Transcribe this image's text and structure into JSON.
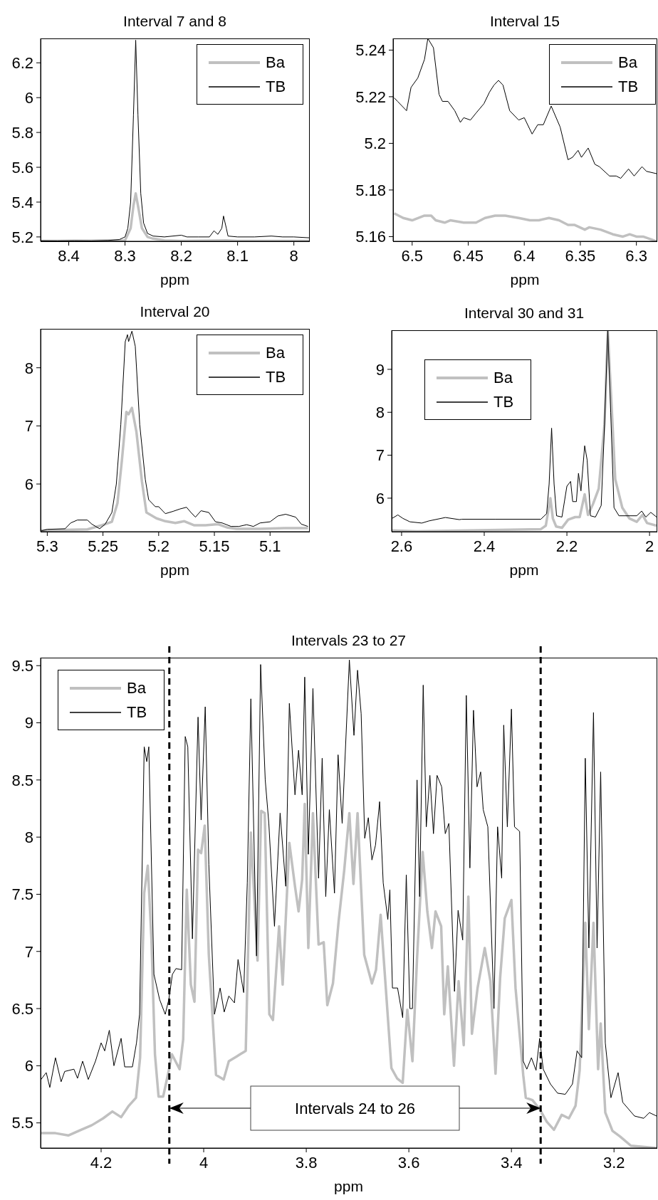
{
  "chart_data": [
    {
      "type": "line",
      "title": "Interval 7 and 8",
      "xlabel": "ppm",
      "xlim": [
        8.45,
        7.973
      ],
      "xticks": [
        8.4,
        8.3,
        8.2,
        8.1,
        8
      ],
      "ylim": [
        5.175,
        6.34
      ],
      "yticks": [
        5.2,
        5.4,
        5.6,
        5.8,
        6,
        6.2
      ],
      "legend": "top right",
      "series": [
        {
          "name": "Ba",
          "color": "#c0c0c0",
          "x": [
            8.45,
            8.3,
            8.29,
            8.285,
            8.281,
            8.277,
            8.27,
            8.26,
            8.25,
            8.23,
            8.2,
            8.12,
            8.1,
            7.973
          ],
          "values": [
            5.177,
            5.18,
            5.25,
            5.38,
            5.45,
            5.38,
            5.25,
            5.2,
            5.19,
            5.18,
            5.177,
            5.18,
            5.177,
            5.177
          ]
        },
        {
          "name": "TB",
          "color": "#000000",
          "x": [
            8.45,
            8.42,
            8.39,
            8.36,
            8.33,
            8.31,
            8.3,
            8.295,
            8.29,
            8.285,
            8.281,
            8.277,
            8.272,
            8.267,
            8.26,
            8.25,
            8.23,
            8.2,
            8.19,
            8.17,
            8.15,
            8.142,
            8.135,
            8.128,
            8.125,
            8.12,
            8.117,
            8.1,
            8.07,
            8.04,
            8.02,
            8.0,
            7.973
          ],
          "values": [
            5.178,
            5.177,
            5.178,
            5.177,
            5.18,
            5.185,
            5.2,
            5.25,
            5.4,
            5.9,
            6.33,
            5.9,
            5.45,
            5.28,
            5.22,
            5.205,
            5.2,
            5.21,
            5.2,
            5.2,
            5.2,
            5.235,
            5.215,
            5.25,
            5.32,
            5.25,
            5.205,
            5.2,
            5.2,
            5.205,
            5.2,
            5.2,
            5.195
          ]
        }
      ]
    },
    {
      "type": "line",
      "title": "Interval 15",
      "xlabel": "ppm",
      "xlim": [
        6.517,
        6.282
      ],
      "xticks": [
        6.5,
        6.45,
        6.4,
        6.35,
        6.3
      ],
      "ylim": [
        5.158,
        5.245
      ],
      "yticks": [
        5.16,
        5.18,
        5.2,
        5.22,
        5.24
      ],
      "legend": "top right",
      "series": [
        {
          "name": "Ba",
          "color": "#c0c0c0",
          "x": [
            6.516,
            6.508,
            6.5,
            6.489,
            6.483,
            6.479,
            6.471,
            6.466,
            6.454,
            6.443,
            6.435,
            6.426,
            6.417,
            6.405,
            6.395,
            6.387,
            6.378,
            6.369,
            6.361,
            6.355,
            6.346,
            6.342,
            6.332,
            6.321,
            6.312,
            6.306,
            6.3,
            6.294,
            6.282
          ],
          "values": [
            5.17,
            5.168,
            5.167,
            5.169,
            5.169,
            5.167,
            5.166,
            5.167,
            5.166,
            5.166,
            5.168,
            5.169,
            5.169,
            5.168,
            5.167,
            5.167,
            5.168,
            5.167,
            5.165,
            5.165,
            5.163,
            5.164,
            5.163,
            5.161,
            5.16,
            5.161,
            5.16,
            5.16,
            5.158
          ]
        },
        {
          "name": "TB",
          "color": "#000000",
          "x": [
            6.516,
            6.513,
            6.505,
            6.501,
            6.495,
            6.489,
            6.486,
            6.481,
            6.476,
            6.473,
            6.468,
            6.462,
            6.457,
            6.454,
            6.448,
            6.443,
            6.436,
            6.431,
            6.427,
            6.423,
            6.419,
            6.413,
            6.405,
            6.4,
            6.393,
            6.388,
            6.383,
            6.376,
            6.368,
            6.361,
            6.357,
            6.352,
            6.349,
            6.343,
            6.337,
            6.333,
            6.324,
            6.318,
            6.314,
            6.307,
            6.302,
            6.295,
            6.291,
            6.282
          ],
          "values": [
            5.2195,
            5.218,
            5.214,
            5.224,
            5.228,
            5.236,
            5.245,
            5.241,
            5.221,
            5.218,
            5.218,
            5.214,
            5.209,
            5.211,
            5.21,
            5.213,
            5.217,
            5.222,
            5.225,
            5.227,
            5.225,
            5.214,
            5.21,
            5.211,
            5.204,
            5.208,
            5.208,
            5.216,
            5.207,
            5.193,
            5.194,
            5.197,
            5.194,
            5.198,
            5.191,
            5.19,
            5.186,
            5.186,
            5.185,
            5.189,
            5.186,
            5.19,
            5.188,
            5.187
          ]
        }
      ]
    },
    {
      "type": "line",
      "title": "Interval 20",
      "xlabel": "ppm",
      "xlim": [
        5.306,
        5.065
      ],
      "xticks": [
        5.3,
        5.25,
        5.2,
        5.15,
        5.1
      ],
      "ylim": [
        5.18,
        8.67
      ],
      "yticks": [
        6,
        7,
        8
      ],
      "legend": "top right",
      "series": [
        {
          "name": "Ba",
          "color": "#c0c0c0",
          "x": [
            5.306,
            5.264,
            5.251,
            5.242,
            5.237,
            5.233,
            5.229,
            5.227,
            5.224,
            5.22,
            5.215,
            5.211,
            5.202,
            5.194,
            5.185,
            5.177,
            5.168,
            5.158,
            5.147,
            5.138,
            5.13,
            5.109,
            5.087,
            5.066
          ],
          "values": [
            5.2,
            5.22,
            5.29,
            5.35,
            5.67,
            6.41,
            7.24,
            7.2,
            7.31,
            6.9,
            6.04,
            5.51,
            5.41,
            5.36,
            5.33,
            5.36,
            5.29,
            5.29,
            5.31,
            5.25,
            5.23,
            5.23,
            5.24,
            5.24
          ]
        },
        {
          "name": "TB",
          "color": "#000000",
          "x": [
            5.306,
            5.3,
            5.284,
            5.279,
            5.273,
            5.264,
            5.26,
            5.253,
            5.248,
            5.242,
            5.238,
            5.234,
            5.23,
            5.228,
            5.227,
            5.224,
            5.221,
            5.217,
            5.212,
            5.209,
            5.203,
            5.2,
            5.194,
            5.187,
            5.181,
            5.175,
            5.171,
            5.167,
            5.162,
            5.155,
            5.149,
            5.143,
            5.135,
            5.128,
            5.121,
            5.115,
            5.109,
            5.1,
            5.093,
            5.086,
            5.077,
            5.072,
            5.066
          ],
          "values": [
            5.19,
            5.22,
            5.23,
            5.33,
            5.38,
            5.38,
            5.31,
            5.23,
            5.31,
            5.51,
            6.0,
            7.02,
            8.45,
            8.57,
            8.45,
            8.63,
            8.37,
            7.02,
            6.08,
            5.73,
            5.61,
            5.61,
            5.49,
            5.53,
            5.57,
            5.6,
            5.51,
            5.43,
            5.54,
            5.51,
            5.35,
            5.33,
            5.27,
            5.27,
            5.3,
            5.27,
            5.33,
            5.35,
            5.45,
            5.48,
            5.43,
            5.31,
            5.27
          ]
        }
      ]
    },
    {
      "type": "line",
      "title": "Interval 30 and 31",
      "xlabel": "ppm",
      "xlim": [
        2.624,
        1.983
      ],
      "xticks": [
        2.6,
        2.4,
        2.2,
        2
      ],
      "ylim": [
        5.22,
        9.91
      ],
      "yticks": [
        6,
        7,
        8,
        9
      ],
      "legend": "top left",
      "series": [
        {
          "name": "Ba",
          "color": "#c0c0c0",
          "x": [
            2.623,
            2.563,
            2.263,
            2.251,
            2.24,
            2.234,
            2.226,
            2.212,
            2.197,
            2.18,
            2.169,
            2.157,
            2.149,
            2.137,
            2.123,
            2.109,
            2.101,
            2.091,
            2.083,
            2.066,
            2.049,
            2.031,
            2.017,
            2.006,
            1.983
          ],
          "values": [
            5.25,
            5.23,
            5.28,
            5.36,
            6.0,
            5.53,
            5.34,
            5.31,
            5.5,
            5.56,
            5.56,
            6.09,
            5.61,
            5.86,
            6.22,
            7.72,
            9.9,
            7.99,
            6.44,
            5.78,
            5.53,
            5.45,
            5.61,
            5.42,
            5.36
          ]
        },
        {
          "name": "TB",
          "color": "#000000",
          "x": [
            2.623,
            2.609,
            2.597,
            2.58,
            2.551,
            2.534,
            2.494,
            2.46,
            2.454,
            2.374,
            2.263,
            2.249,
            2.243,
            2.237,
            2.231,
            2.225,
            2.212,
            2.2,
            2.191,
            2.186,
            2.177,
            2.172,
            2.166,
            2.157,
            2.151,
            2.143,
            2.131,
            2.117,
            2.11,
            2.101,
            2.094,
            2.086,
            2.074,
            2.031,
            2.019,
            2.009,
            1.997,
            1.983
          ],
          "values": [
            5.53,
            5.61,
            5.53,
            5.45,
            5.42,
            5.47,
            5.55,
            5.5,
            5.51,
            5.51,
            5.51,
            5.64,
            6.33,
            7.63,
            6.33,
            5.59,
            5.56,
            6.28,
            6.39,
            5.92,
            5.92,
            6.58,
            6.17,
            7.22,
            6.89,
            5.59,
            5.56,
            5.83,
            7.44,
            9.9,
            7.99,
            5.78,
            5.59,
            5.59,
            5.7,
            5.56,
            5.67,
            5.56
          ]
        }
      ]
    },
    {
      "type": "line",
      "title": "Intervals 23 to 27",
      "xlabel": "ppm",
      "xlim": [
        4.318,
        3.117
      ],
      "xticks": [
        4.2,
        4,
        3.8,
        3.6,
        3.4,
        3.2
      ],
      "ylim": [
        5.28,
        9.57
      ],
      "yticks": [
        5.5,
        6,
        6.5,
        7,
        7.5,
        8,
        8.5,
        9,
        9.5
      ],
      "legend": "top left",
      "ref_lines": [
        {
          "axis": "x",
          "value": 4.067,
          "color": "#000000",
          "line_style": "dashed"
        },
        {
          "axis": "x",
          "value": 3.343,
          "color": "#000000",
          "line_style": "dashed"
        }
      ],
      "annotations": [
        "Intervals 24 to 26"
      ],
      "series": [
        {
          "name": "Ba",
          "color": "#c0c0c0",
          "x": [
            4.318,
            4.289,
            4.264,
            4.239,
            4.218,
            4.196,
            4.178,
            4.161,
            4.146,
            4.132,
            4.124,
            4.116,
            4.109,
            4.102,
            4.095,
            4.088,
            4.079,
            4.068,
            4.062,
            4.047,
            4.04,
            4.033,
            4.025,
            4.018,
            4.011,
            4.005,
            3.998,
            3.99,
            3.976,
            3.961,
            3.951,
            3.936,
            3.929,
            3.918,
            3.908,
            3.895,
            3.888,
            3.881,
            3.872,
            3.865,
            3.853,
            3.846,
            3.833,
            3.822,
            3.815,
            3.808,
            3.803,
            3.796,
            3.787,
            3.776,
            3.766,
            3.759,
            3.748,
            3.737,
            3.726,
            3.716,
            3.708,
            3.7,
            3.687,
            3.672,
            3.664,
            3.655,
            3.644,
            3.634,
            3.623,
            3.612,
            3.603,
            3.593,
            3.584,
            3.573,
            3.564,
            3.555,
            3.548,
            3.537,
            3.531,
            3.524,
            3.512,
            3.503,
            3.493,
            3.484,
            3.477,
            3.466,
            3.452,
            3.441,
            3.431,
            3.422,
            3.413,
            3.4,
            3.392,
            3.377,
            3.372,
            3.359,
            3.345,
            3.331,
            3.317,
            3.302,
            3.288,
            3.275,
            3.267,
            3.256,
            3.249,
            3.24,
            3.231,
            3.226,
            3.217,
            3.203,
            3.188,
            3.167,
            3.117
          ],
          "values": [
            5.41,
            5.41,
            5.39,
            5.44,
            5.48,
            5.54,
            5.6,
            5.55,
            5.65,
            5.72,
            6.07,
            7.51,
            7.75,
            7.12,
            6.1,
            5.73,
            5.73,
            5.96,
            6.1,
            5.97,
            6.23,
            7.54,
            6.71,
            6.56,
            7.89,
            7.86,
            8.1,
            6.97,
            5.92,
            5.88,
            6.04,
            6.08,
            6.1,
            6.13,
            8.04,
            6.92,
            8.23,
            8.21,
            6.45,
            6.4,
            7.22,
            6.71,
            7.95,
            7.57,
            7.35,
            7.63,
            8.29,
            7.03,
            8.21,
            7.06,
            7.08,
            6.53,
            6.72,
            7.26,
            7.71,
            8.21,
            7.59,
            8.21,
            6.97,
            6.72,
            6.84,
            7.32,
            6.62,
            5.98,
            5.89,
            5.85,
            6.49,
            6.04,
            6.94,
            7.87,
            7.35,
            7.03,
            7.35,
            7.22,
            6.45,
            6.87,
            6.0,
            6.74,
            6.18,
            7.48,
            6.28,
            6.68,
            7.03,
            6.74,
            5.93,
            6.77,
            7.29,
            7.45,
            6.68,
            5.92,
            5.72,
            5.7,
            5.62,
            5.51,
            5.44,
            5.57,
            5.54,
            5.65,
            5.96,
            7.25,
            6.32,
            7.25,
            5.97,
            6.37,
            5.59,
            5.43,
            5.38,
            5.3,
            5.28
          ]
        },
        {
          "name": "TB",
          "color": "#000000",
          "x": [
            4.318,
            4.307,
            4.3,
            4.289,
            4.278,
            4.271,
            4.253,
            4.246,
            4.236,
            4.225,
            4.211,
            4.2,
            4.193,
            4.184,
            4.175,
            4.161,
            4.154,
            4.139,
            4.131,
            4.125,
            4.116,
            4.111,
            4.107,
            4.097,
            4.086,
            4.075,
            4.068,
            4.061,
            4.054,
            4.043,
            4.036,
            4.031,
            4.022,
            4.011,
            4.005,
            3.997,
            3.99,
            3.979,
            3.968,
            3.96,
            3.951,
            3.94,
            3.933,
            3.922,
            3.915,
            3.908,
            3.897,
            3.889,
            3.88,
            3.873,
            3.862,
            3.851,
            3.84,
            3.833,
            3.822,
            3.815,
            3.808,
            3.803,
            3.796,
            3.787,
            3.776,
            3.769,
            3.762,
            3.755,
            3.745,
            3.738,
            3.73,
            3.716,
            3.707,
            3.7,
            3.693,
            3.686,
            3.679,
            3.672,
            3.665,
            3.657,
            3.65,
            3.641,
            3.637,
            3.632,
            3.622,
            3.612,
            3.605,
            3.598,
            3.593,
            3.584,
            3.579,
            3.572,
            3.566,
            3.559,
            3.552,
            3.545,
            3.536,
            3.529,
            3.522,
            3.511,
            3.504,
            3.495,
            3.488,
            3.481,
            3.474,
            3.467,
            3.46,
            3.455,
            3.446,
            3.434,
            3.427,
            3.419,
            3.415,
            3.408,
            3.4,
            3.394,
            3.384,
            3.377,
            3.37,
            3.361,
            3.352,
            3.345,
            3.338,
            3.324,
            3.31,
            3.295,
            3.281,
            3.272,
            3.263,
            3.256,
            3.249,
            3.24,
            3.233,
            3.226,
            3.217,
            3.206,
            3.192,
            3.183,
            3.16,
            3.142,
            3.131,
            3.117
          ],
          "values": [
            5.875,
            5.94,
            5.81,
            6.07,
            5.86,
            5.95,
            5.97,
            5.89,
            6.04,
            5.88,
            6.04,
            6.2,
            6.13,
            6.31,
            6.0,
            6.24,
            5.99,
            5.99,
            6.2,
            6.45,
            8.79,
            8.66,
            8.79,
            6.8,
            6.58,
            6.45,
            6.58,
            6.8,
            6.85,
            6.84,
            8.88,
            8.79,
            7.11,
            9.05,
            8.15,
            9.14,
            7.76,
            6.45,
            6.68,
            6.47,
            6.61,
            6.55,
            6.93,
            6.64,
            7.6,
            9.21,
            6.96,
            9.51,
            8.5,
            8.12,
            7.22,
            8.21,
            7.57,
            9.17,
            8.37,
            8.76,
            8.37,
            9.4,
            7.85,
            9.3,
            7.64,
            8.69,
            7.48,
            8.24,
            7.51,
            8.72,
            8.12,
            9.55,
            8.89,
            9.46,
            9.08,
            7.99,
            8.17,
            7.8,
            7.93,
            8.31,
            7.6,
            7.28,
            7.54,
            6.68,
            6.68,
            6.42,
            7.67,
            6.5,
            6.5,
            8.5,
            7.48,
            9.33,
            8.09,
            8.54,
            8.03,
            8.54,
            8.44,
            8.03,
            8.12,
            6.65,
            7.36,
            7.1,
            9.24,
            7.73,
            9.11,
            8.44,
            8.57,
            8.24,
            8.09,
            6.5,
            8.09,
            7.64,
            8.98,
            8.09,
            9.12,
            8.09,
            8.05,
            6.04,
            5.97,
            6.07,
            5.96,
            6.24,
            5.97,
            5.84,
            5.76,
            5.75,
            5.84,
            6.13,
            6.07,
            8.69,
            7.03,
            9.09,
            7.03,
            8.57,
            6.2,
            5.72,
            5.94,
            5.68,
            5.56,
            5.54,
            5.59,
            5.56
          ]
        }
      ]
    }
  ]
}
